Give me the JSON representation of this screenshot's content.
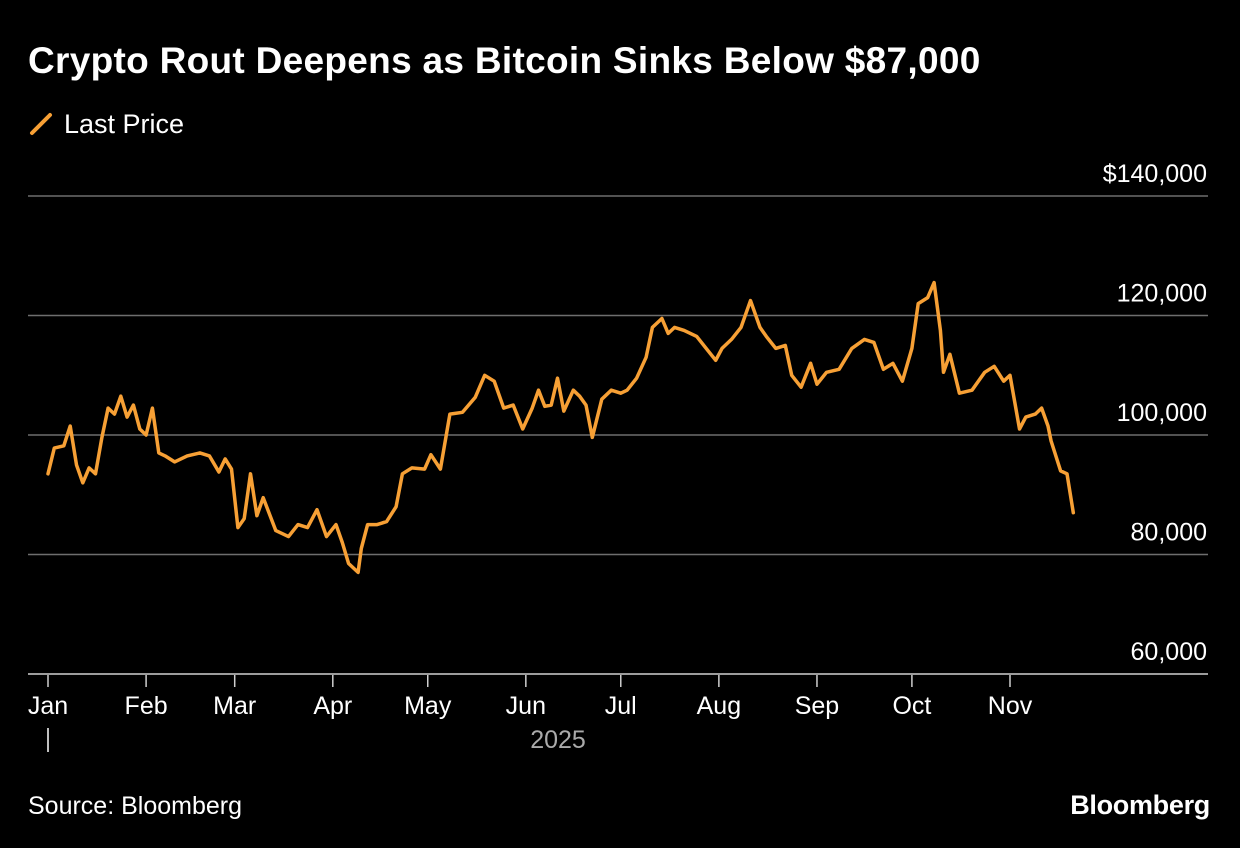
{
  "chart_data": {
    "type": "line",
    "title": "Crypto Rout Deepens as Bitcoin Sinks Below $87,000",
    "legend": [
      "Last Price"
    ],
    "legend_placement": "top-left",
    "source": "Source: Bloomberg",
    "brand": "Bloomberg",
    "year_label": "2025",
    "ylim": [
      60000,
      140000
    ],
    "y_ticks": [
      {
        "value": 140000,
        "label": "$140,000"
      },
      {
        "value": 120000,
        "label": "120,000"
      },
      {
        "value": 100000,
        "label": "100,000"
      },
      {
        "value": 80000,
        "label": "80,000"
      },
      {
        "value": 60000,
        "label": "60,000"
      }
    ],
    "x_ticks": [
      {
        "date": "2025-01-01",
        "label": "Jan"
      },
      {
        "date": "2025-02-01",
        "label": "Feb"
      },
      {
        "date": "2025-03-01",
        "label": "Mar"
      },
      {
        "date": "2025-04-01",
        "label": "Apr"
      },
      {
        "date": "2025-05-01",
        "label": "May"
      },
      {
        "date": "2025-06-01",
        "label": "Jun"
      },
      {
        "date": "2025-07-01",
        "label": "Jul"
      },
      {
        "date": "2025-08-01",
        "label": "Aug"
      },
      {
        "date": "2025-09-01",
        "label": "Sep"
      },
      {
        "date": "2025-10-01",
        "label": "Oct"
      },
      {
        "date": "2025-11-01",
        "label": "Nov"
      }
    ],
    "grid": true,
    "line_color": "#f7a035",
    "series": [
      {
        "name": "Last Price",
        "x": [
          "2025-01-01",
          "2025-01-03",
          "2025-01-06",
          "2025-01-08",
          "2025-01-10",
          "2025-01-12",
          "2025-01-14",
          "2025-01-16",
          "2025-01-18",
          "2025-01-20",
          "2025-01-22",
          "2025-01-24",
          "2025-01-26",
          "2025-01-28",
          "2025-01-30",
          "2025-02-01",
          "2025-02-03",
          "2025-02-05",
          "2025-02-07",
          "2025-02-10",
          "2025-02-14",
          "2025-02-18",
          "2025-02-21",
          "2025-02-24",
          "2025-02-26",
          "2025-02-28",
          "2025-03-02",
          "2025-03-04",
          "2025-03-06",
          "2025-03-08",
          "2025-03-10",
          "2025-03-14",
          "2025-03-18",
          "2025-03-21",
          "2025-03-24",
          "2025-03-27",
          "2025-03-30",
          "2025-04-02",
          "2025-04-04",
          "2025-04-06",
          "2025-04-09",
          "2025-04-10",
          "2025-04-12",
          "2025-04-15",
          "2025-04-18",
          "2025-04-21",
          "2025-04-23",
          "2025-04-26",
          "2025-04-30",
          "2025-05-02",
          "2025-05-05",
          "2025-05-08",
          "2025-05-12",
          "2025-05-16",
          "2025-05-19",
          "2025-05-22",
          "2025-05-25",
          "2025-05-28",
          "2025-05-31",
          "2025-06-03",
          "2025-06-05",
          "2025-06-07",
          "2025-06-09",
          "2025-06-11",
          "2025-06-13",
          "2025-06-16",
          "2025-06-18",
          "2025-06-20",
          "2025-06-22",
          "2025-06-25",
          "2025-06-28",
          "2025-07-01",
          "2025-07-03",
          "2025-07-06",
          "2025-07-09",
          "2025-07-11",
          "2025-07-14",
          "2025-07-16",
          "2025-07-18",
          "2025-07-21",
          "2025-07-25",
          "2025-07-28",
          "2025-07-31",
          "2025-08-02",
          "2025-08-05",
          "2025-08-08",
          "2025-08-11",
          "2025-08-14",
          "2025-08-16",
          "2025-08-19",
          "2025-08-22",
          "2025-08-24",
          "2025-08-27",
          "2025-08-30",
          "2025-09-01",
          "2025-09-04",
          "2025-09-08",
          "2025-09-12",
          "2025-09-16",
          "2025-09-19",
          "2025-09-22",
          "2025-09-25",
          "2025-09-28",
          "2025-10-01",
          "2025-10-03",
          "2025-10-06",
          "2025-10-08",
          "2025-10-10",
          "2025-10-11",
          "2025-10-13",
          "2025-10-16",
          "2025-10-20",
          "2025-10-24",
          "2025-10-27",
          "2025-10-30",
          "2025-11-01",
          "2025-11-04",
          "2025-11-06",
          "2025-11-09",
          "2025-11-11",
          "2025-11-13",
          "2025-11-14",
          "2025-11-17",
          "2025-11-19",
          "2025-11-21"
        ],
        "values": [
          93500,
          97800,
          98200,
          101500,
          95000,
          92000,
          94500,
          93500,
          99500,
          104500,
          103500,
          106500,
          103000,
          105000,
          101000,
          100000,
          104500,
          97000,
          96500,
          95500,
          96500,
          97000,
          96500,
          93800,
          96000,
          94300,
          84500,
          86000,
          93500,
          86500,
          89500,
          84000,
          83000,
          85000,
          84500,
          87500,
          83000,
          85000,
          82000,
          78500,
          77000,
          81000,
          85000,
          85000,
          85500,
          88000,
          93500,
          94500,
          94300,
          96700,
          94300,
          103500,
          103800,
          106300,
          110000,
          109000,
          104500,
          105000,
          101000,
          104500,
          107500,
          104800,
          105000,
          109500,
          104000,
          107500,
          106500,
          105000,
          99600,
          106000,
          107500,
          107000,
          107500,
          109500,
          113000,
          118000,
          119500,
          117000,
          118000,
          117500,
          116500,
          114500,
          112500,
          114500,
          116000,
          118000,
          122500,
          118000,
          116500,
          114500,
          115000,
          110000,
          108000,
          112000,
          108500,
          110500,
          111000,
          114500,
          116000,
          115500,
          111000,
          112000,
          109000,
          114500,
          122000,
          123000,
          125500,
          117500,
          110500,
          113500,
          107000,
          107500,
          110500,
          111500,
          109000,
          110000,
          101000,
          103000,
          103500,
          104500,
          101500,
          99000,
          94000,
          93500,
          87000
        ]
      }
    ]
  }
}
